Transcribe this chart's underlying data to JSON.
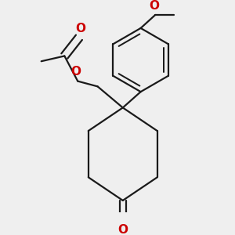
{
  "bg_color": "#efefef",
  "bond_color": "#1a1a1a",
  "oxygen_color": "#cc0000",
  "line_width": 1.6,
  "figsize": [
    3.0,
    3.0
  ],
  "dpi": 100,
  "xlim": [
    0,
    300
  ],
  "ylim": [
    0,
    300
  ]
}
